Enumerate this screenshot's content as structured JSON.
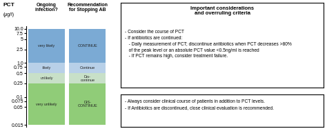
{
  "chart_data": {
    "type": "range_bar",
    "title": "PCT",
    "subtitle": "(μg/l)",
    "log": "y",
    "ylim": [
      0.013,
      12.0
    ],
    "yticks": [
      0.015,
      0.05,
      0.075,
      0.1,
      0.25,
      0.5,
      0.75,
      {
        "value": 1,
        "label": "1.0"
      },
      2.5,
      5,
      7.5,
      {
        "value": 10,
        "label": "10.0"
      }
    ],
    "tick_labels": "y",
    "headers": [
      "Ongoing\ninfection?",
      "Recommendation\nfor Stopping AB"
    ],
    "series": [
      {
        "labels": [
          "very likely",
          "likely",
          "unlikely",
          "very unlikely"
        ],
        "ranges": [
          [
            1.0,
            10.0
          ],
          [
            0.5,
            1.0
          ],
          [
            0.25,
            0.5
          ],
          [
            0.015,
            0.25
          ]
        ],
        "colors": [
          "#7baad4",
          "#b8d0e8",
          "#c8e0c8",
          "#90cc78"
        ]
      },
      {
        "labels": [
          "CONTINUE",
          "Continue",
          "Dis-\ncontinue",
          "DIS-\nCONTINUE"
        ],
        "ranges": [
          [
            1.0,
            10.0
          ],
          [
            0.5,
            1.0
          ],
          [
            0.25,
            0.5
          ],
          [
            0.015,
            0.25
          ]
        ],
        "colors": [
          "#7baad4",
          "#b8d0e8",
          "#c8e0c8",
          "#90cc78"
        ]
      }
    ],
    "annotations": [
      {
        "title": "Important considerations\nand overruling criteria",
        "text": "- Consider the course of PCT\n- If antibiotics are continued:\n   - Daily measurement of PCT; discontinue antibiotics when PCT decreases >80%\n   of the peak level or an absolute PCT value <0.5ng/ml is reached\n   - If PCT remains high, consider treatment failure."
      },
      {
        "text": "- Always consider clinical course of patients in addition to PCT levels.\n- If Antibiotics are discontinued, close clinical evaluation is recommended."
      }
    ]
  }
}
